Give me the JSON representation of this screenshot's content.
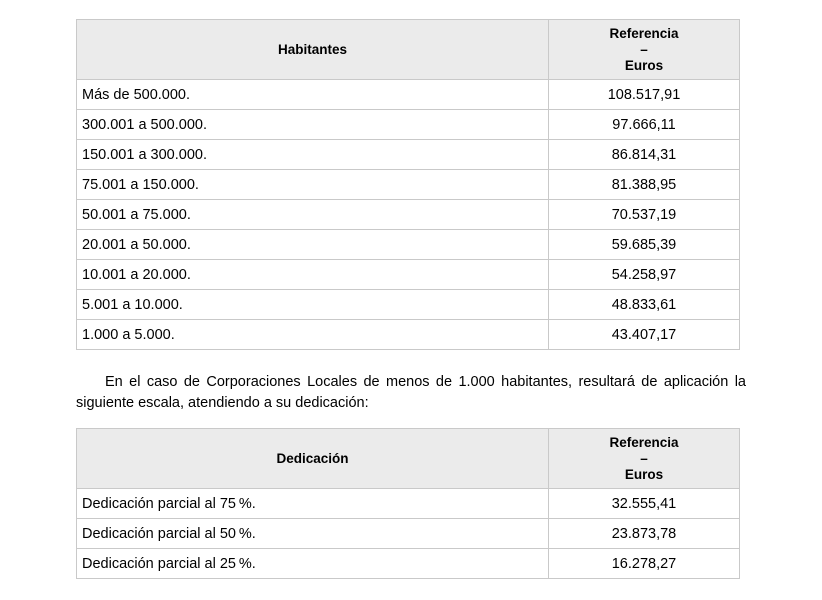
{
  "page": {
    "background": "#ffffff",
    "text_color": "#000000",
    "header_bg": "#ebebeb",
    "border_color": "#c9c9c9"
  },
  "table1": {
    "col1_header": "Habitantes",
    "col2_header": "Referencia\n–\nEuros",
    "rows": [
      {
        "label": "Más de 500.000.",
        "value": "108.517,91"
      },
      {
        "label": "300.001 a 500.000.",
        "value": "97.666,11"
      },
      {
        "label": "150.001 a 300.000.",
        "value": "86.814,31"
      },
      {
        "label": "75.001 a 150.000.",
        "value": "81.388,95"
      },
      {
        "label": "50.001 a 75.000.",
        "value": "70.537,19"
      },
      {
        "label": "20.001 a 50.000.",
        "value": "59.685,39"
      },
      {
        "label": "10.001 a 20.000.",
        "value": "54.258,97"
      },
      {
        "label": "5.001 a 10.000.",
        "value": "48.833,61"
      },
      {
        "label": "1.000 a 5.000.",
        "value": "43.407,17"
      }
    ]
  },
  "paragraph": "En el caso de Corporaciones Locales de menos de 1.000 habitantes, resultará de aplicación la siguiente escala, atendiendo a su dedicación:",
  "table2": {
    "col1_header": "Dedicación",
    "col2_header": "Referencia\n–\nEuros",
    "rows": [
      {
        "label": "Dedicación parcial al 75 %.",
        "value": "32.555,41"
      },
      {
        "label": "Dedicación parcial al 50 %.",
        "value": "23.873,78"
      },
      {
        "label": "Dedicación parcial al 25 %.",
        "value": "16.278,27"
      }
    ]
  }
}
